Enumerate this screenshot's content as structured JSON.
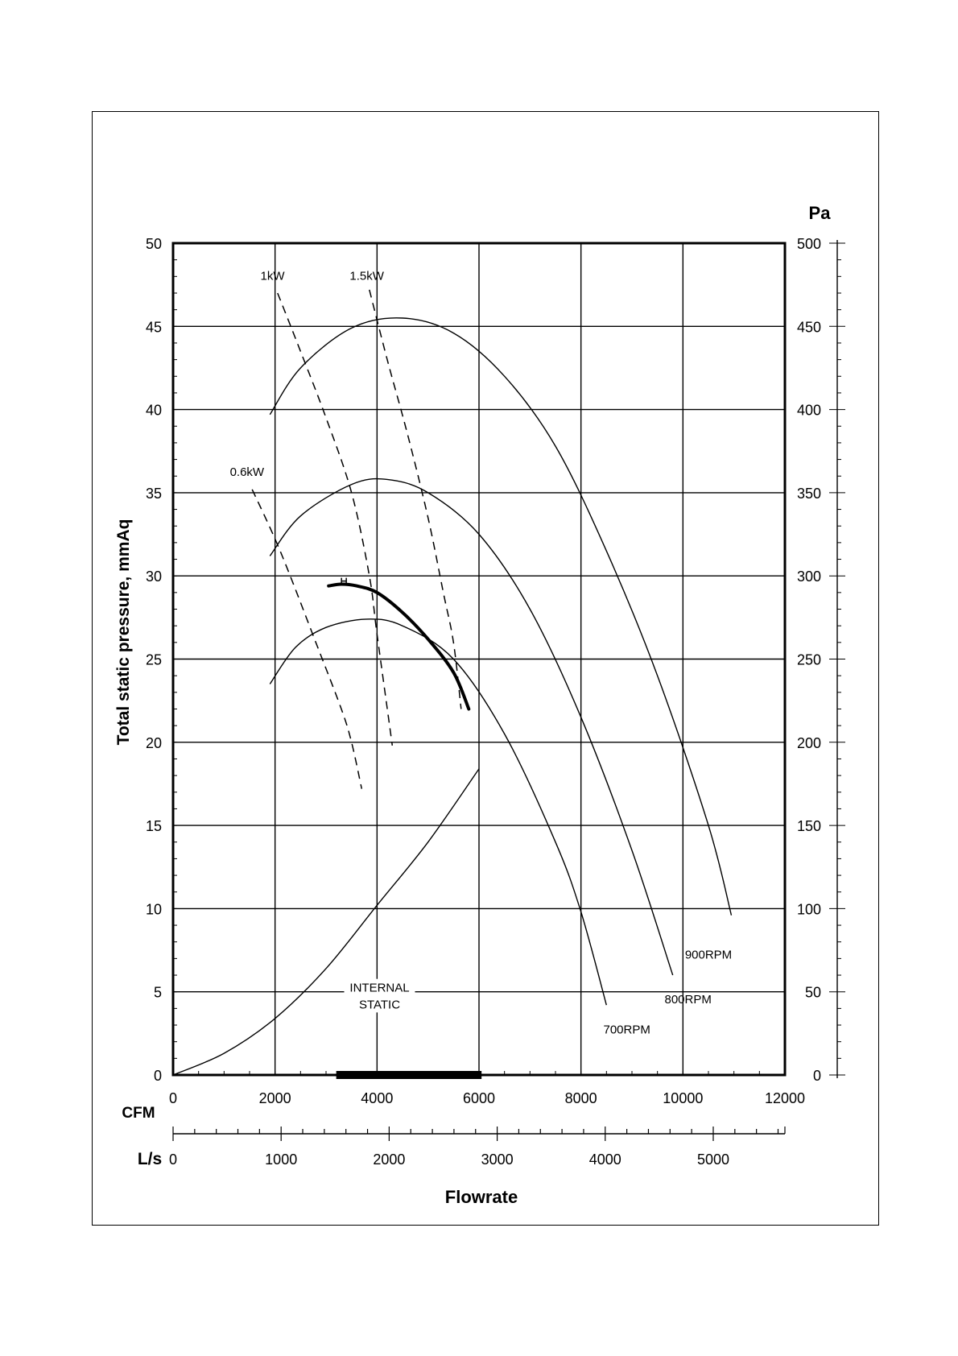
{
  "chart_data": {
    "type": "line",
    "ylabel": "Total static pressure, mmAq",
    "ylabel_right": "Pa",
    "xlabel": "Flowrate",
    "x_units_primary": "CFM",
    "x_units_secondary": "L/s",
    "xlim": [
      0,
      12000
    ],
    "ylim": [
      0,
      50
    ],
    "ylim_right": [
      0,
      500
    ],
    "grid": true,
    "x_ticks": [
      "0",
      "2000",
      "4000",
      "6000",
      "8000",
      "10000",
      "12000"
    ],
    "x_ticks_ls": [
      "0",
      "1000",
      "2000",
      "3000",
      "4000",
      "5000"
    ],
    "y_ticks": [
      "0",
      "5",
      "10",
      "15",
      "20",
      "25",
      "30",
      "35",
      "40",
      "45",
      "50"
    ],
    "y_ticks_right": [
      "0",
      "50",
      "100",
      "150",
      "200",
      "250",
      "300",
      "350",
      "400",
      "450",
      "500"
    ],
    "series": [
      {
        "name": "900RPM",
        "style": "solid",
        "x": [
          1900,
          2500,
          3500,
          4500,
          5500,
          6500,
          7500,
          8500,
          9500,
          10500,
          10950
        ],
        "y": [
          39.7,
          42.5,
          44.9,
          45.5,
          44.6,
          42.0,
          37.8,
          31.5,
          24.0,
          15.0,
          9.6
        ]
      },
      {
        "name": "800RPM",
        "style": "solid",
        "x": [
          1900,
          2500,
          3500,
          4200,
          5000,
          6000,
          7000,
          8000,
          9000,
          9800
        ],
        "y": [
          31.2,
          33.6,
          35.5,
          35.8,
          35.0,
          32.5,
          28.0,
          21.5,
          13.5,
          6.0
        ]
      },
      {
        "name": "700RPM",
        "style": "solid",
        "x": [
          1900,
          2400,
          3000,
          3800,
          4500,
          5500,
          6500,
          7500,
          8000,
          8500
        ],
        "y": [
          23.5,
          25.7,
          26.9,
          27.4,
          27.0,
          25.0,
          20.5,
          14.0,
          9.8,
          4.2
        ]
      },
      {
        "name": "INTERNAL STATIC",
        "style": "solid",
        "x": [
          0,
          1000,
          2000,
          3000,
          4000,
          5000,
          6000
        ],
        "y": [
          0,
          1.3,
          3.4,
          6.4,
          10.2,
          14.0,
          18.4
        ]
      },
      {
        "name": "",
        "style": "bold",
        "x": [
          3050,
          3300,
          3600,
          4000,
          4500,
          5000,
          5500,
          5800
        ],
        "y": [
          29.4,
          29.5,
          29.4,
          29.0,
          27.8,
          26.2,
          24.2,
          22.0
        ]
      },
      {
        "name": "0.6kW",
        "style": "dashed",
        "x": [
          1550,
          2100,
          2800,
          3300,
          3500,
          3700
        ],
        "y": [
          35.2,
          31.5,
          26.0,
          22.0,
          20.0,
          17.2
        ]
      },
      {
        "name": "1kW",
        "style": "dashed",
        "x": [
          2050,
          2500,
          3000,
          3500,
          3850,
          4000,
          4300
        ],
        "y": [
          47.0,
          43.5,
          39.5,
          35.0,
          30.0,
          26.5,
          19.8
        ]
      },
      {
        "name": "1.5kW",
        "style": "dashed",
        "x": [
          3850,
          4200,
          4600,
          5000,
          5300,
          5500,
          5650
        ],
        "y": [
          47.2,
          43.0,
          38.5,
          33.5,
          29.0,
          26.0,
          22.0
        ]
      }
    ],
    "annotations": [
      {
        "text": "1kW",
        "x": 1950,
        "y": 47.8
      },
      {
        "text": "1.5kW",
        "x": 3800,
        "y": 47.8
      },
      {
        "text": "0.6kW",
        "x": 1450,
        "y": 36.0
      },
      {
        "text": "900RPM",
        "x": 10500,
        "y": 7.0
      },
      {
        "text": "800RPM",
        "x": 10100,
        "y": 4.3
      },
      {
        "text": "700RPM",
        "x": 8900,
        "y": 2.5
      },
      {
        "text": "INTERNAL",
        "x": 4050,
        "y": 5.0
      },
      {
        "text": "STATIC",
        "x": 4050,
        "y": 4.0
      }
    ],
    "range_bar": [
      3200,
      6050
    ]
  }
}
